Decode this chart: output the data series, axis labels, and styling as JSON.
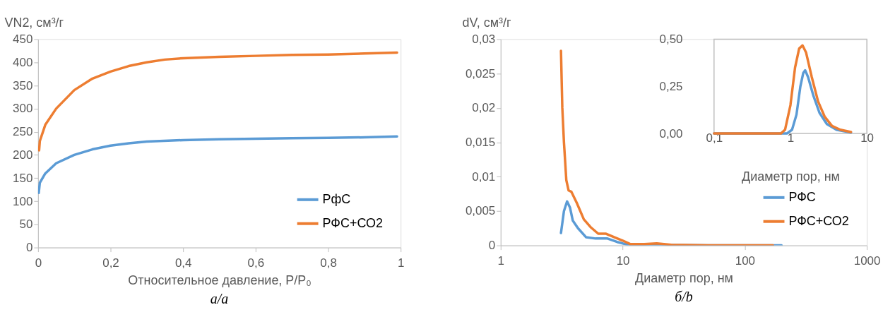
{
  "chart_data": [
    {
      "type": "line",
      "xlabel": "Относительное давление, P/P₀",
      "ylabel": "VN2, см³/г",
      "xlim": [
        0,
        1
      ],
      "xticks": [
        0,
        {
          "value": 0.2,
          "label": "0,2"
        },
        {
          "value": 0.4,
          "label": "0,4"
        },
        {
          "value": 0.6,
          "label": "0,6"
        },
        {
          "value": 0.8,
          "label": "0,8"
        },
        1
      ],
      "ylim": [
        0,
        450
      ],
      "yticks": [
        0,
        50,
        100,
        150,
        200,
        250,
        300,
        350,
        400,
        450
      ],
      "grid": false,
      "legend": "bottom right",
      "annotations": [
        "а/a"
      ],
      "series": [
        {
          "name": "РфС",
          "color": "#5b9bd5",
          "x": [
            0.002,
            0.005,
            0.02,
            0.05,
            0.1,
            0.15,
            0.2,
            0.25,
            0.3,
            0.4,
            0.5,
            0.6,
            0.7,
            0.8,
            0.9,
            0.99
          ],
          "values": [
            118,
            140,
            160,
            182,
            200,
            212,
            220,
            225,
            229,
            232,
            234,
            235,
            236,
            237,
            238,
            240
          ]
        },
        {
          "name": "РФС+СО2",
          "color": "#ed7d31",
          "x": [
            0.003,
            0.005,
            0.02,
            0.05,
            0.1,
            0.15,
            0.2,
            0.25,
            0.3,
            0.35,
            0.4,
            0.5,
            0.6,
            0.7,
            0.8,
            0.9,
            0.99
          ],
          "values": [
            210,
            230,
            265,
            300,
            340,
            365,
            380,
            392,
            400,
            406,
            409,
            412,
            414,
            416,
            417,
            419,
            421
          ]
        }
      ]
    },
    {
      "type": "line",
      "xlabel": "Диаметр пор, нм",
      "ylabel": "dV, см³/г",
      "log": "x",
      "xlim": [
        1,
        1000
      ],
      "xticks": [
        1,
        10,
        100,
        1000
      ],
      "ylim": [
        0,
        0.03
      ],
      "yticks": [
        0,
        {
          "value": 0.005,
          "label": "0,005"
        },
        {
          "value": 0.01,
          "label": "0,01"
        },
        {
          "value": 0.015,
          "label": "0,015"
        },
        {
          "value": 0.02,
          "label": "0,02"
        },
        {
          "value": 0.025,
          "label": "0,025"
        },
        {
          "value": 0.03,
          "label": "0,03"
        }
      ],
      "grid": false,
      "legend": "bottom right",
      "annotations": [
        "б/b"
      ],
      "series": [
        {
          "name": "РФС",
          "color": "#5b9bd5",
          "x": [
            3.12,
            3.3,
            3.5,
            3.7,
            3.9,
            4.3,
            5,
            6,
            7.5,
            9,
            11,
            20,
            50,
            100,
            200
          ],
          "values": [
            0.0018,
            0.005,
            0.0064,
            0.0055,
            0.0036,
            0.0025,
            0.0012,
            0.001,
            0.001,
            0.0005,
            0.0001,
            0.0001,
            0,
            0,
            0
          ]
        },
        {
          "name": "РФС+СО2",
          "color": "#ed7d31",
          "x": [
            3.12,
            3.2,
            3.3,
            3.45,
            3.6,
            3.8,
            4.2,
            4.8,
            5.5,
            6.3,
            7.3,
            8.5,
            10,
            11.5,
            15,
            19,
            25,
            50,
            100,
            170
          ],
          "values": [
            0.0283,
            0.02,
            0.015,
            0.0095,
            0.008,
            0.0078,
            0.0062,
            0.0038,
            0.0026,
            0.0017,
            0.0017,
            0.0012,
            0.0007,
            0.0002,
            0.0002,
            0.0003,
            0.0001,
            0,
            0,
            0
          ]
        }
      ]
    },
    {
      "type": "line",
      "xlabel": "Диаметр пор, нм",
      "log": "x",
      "xlim": [
        0.1,
        10
      ],
      "xticks": [
        {
          "value": 0.1,
          "label": "0,1"
        },
        1,
        10
      ],
      "ylim": [
        0,
        0.5
      ],
      "yticks": [
        {
          "value": 0,
          "label": "0,00"
        },
        {
          "value": 0.25,
          "label": "0,25"
        },
        {
          "value": 0.5,
          "label": "0,50"
        }
      ],
      "grid": false,
      "series": [
        {
          "color": "#5b9bd5",
          "x": [
            0.1,
            0.5,
            0.9,
            1.05,
            1.2,
            1.35,
            1.47,
            1.56,
            1.7,
            2.0,
            2.4,
            3,
            4,
            6.2
          ],
          "values": [
            0,
            0,
            0,
            0.02,
            0.1,
            0.25,
            0.32,
            0.335,
            0.3,
            0.2,
            0.11,
            0.05,
            0.02,
            0.005
          ]
        },
        {
          "color": "#ed7d31",
          "x": [
            0.1,
            0.5,
            0.75,
            0.85,
            1.0,
            1.15,
            1.3,
            1.44,
            1.6,
            1.9,
            2.3,
            2.8,
            3.5,
            4.5,
            6.2
          ],
          "values": [
            0,
            0,
            0,
            0.02,
            0.15,
            0.35,
            0.45,
            0.467,
            0.43,
            0.3,
            0.17,
            0.09,
            0.04,
            0.02,
            0.008
          ]
        }
      ]
    }
  ]
}
